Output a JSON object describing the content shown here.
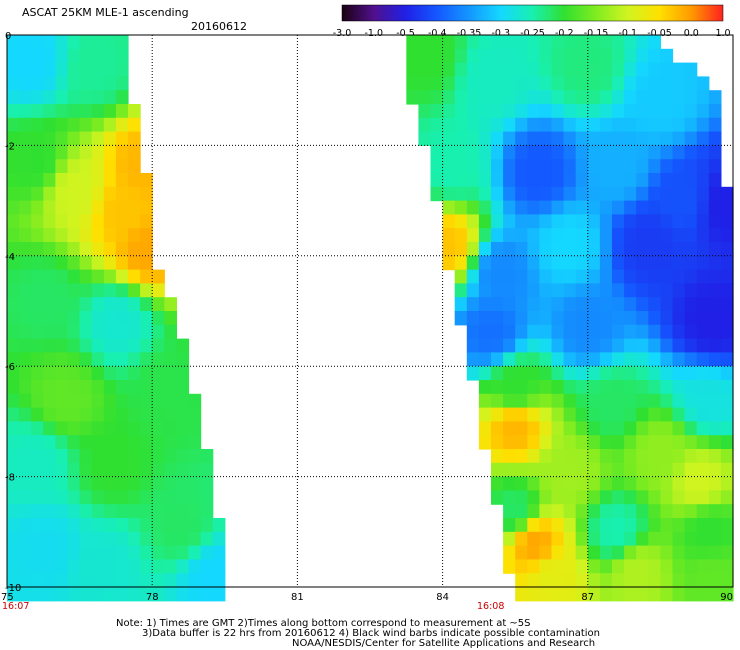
{
  "chart_data": {
    "type": "heatmap",
    "title": "ASCAT 25KM MLE-1 ascending",
    "date": "20160612",
    "xlim": [
      75,
      90
    ],
    "ylim": [
      -10,
      0
    ],
    "x_ticks": [
      "75",
      "78",
      "81",
      "84",
      "87",
      "90"
    ],
    "y_ticks": [
      "0",
      "-2",
      "-4",
      "-6",
      "-8",
      "-10"
    ],
    "grid": true,
    "time_labels": [
      {
        "lon": 75,
        "text": "16:07"
      },
      {
        "lon": 85,
        "text": "16:08"
      }
    ],
    "colorbar": {
      "tick_labels": [
        "-3.0",
        "-1.0",
        "-0.5",
        "-0.4",
        "-0.35",
        "-0.3",
        "-0.25",
        "-0.2",
        "-0.15",
        "-0.1",
        "-0.05",
        "0.0",
        "1.0"
      ],
      "colors": [
        "#1a0010",
        "#50108c",
        "#2020e6",
        "#1458ff",
        "#1496ff",
        "#14d8ff",
        "#18f0b0",
        "#30e030",
        "#80ec20",
        "#d0f420",
        "#ffe000",
        "#ff9a00",
        "#ff2020"
      ]
    },
    "swaths": [
      {
        "name": "west",
        "edges": [
          {
            "lat": 0.0,
            "lon_min": 75.0,
            "lon_max": 77.35
          },
          {
            "lat": -0.5,
            "lon_min": 75.0,
            "lon_max": 77.45
          },
          {
            "lat": -1.0,
            "lon_min": 75.0,
            "lon_max": 77.5
          },
          {
            "lat": -1.5,
            "lon_min": 75.0,
            "lon_max": 77.7
          },
          {
            "lat": -2.0,
            "lon_min": 75.0,
            "lon_max": 77.8
          },
          {
            "lat": -3.0,
            "lon_min": 75.0,
            "lon_max": 77.95
          },
          {
            "lat": -4.0,
            "lon_min": 75.0,
            "lon_max": 78.05
          },
          {
            "lat": -5.0,
            "lon_min": 75.0,
            "lon_max": 78.5
          },
          {
            "lat": -6.0,
            "lon_min": 75.0,
            "lon_max": 78.75
          },
          {
            "lat": -7.0,
            "lon_min": 75.0,
            "lon_max": 79.0
          },
          {
            "lat": -8.0,
            "lon_min": 75.0,
            "lon_max": 79.25
          },
          {
            "lat": -9.0,
            "lon_min": 75.0,
            "lon_max": 79.4
          },
          {
            "lat": -10.0,
            "lon_min": 75.0,
            "lon_max": 79.6
          }
        ],
        "anchors": [
          {
            "lon": 75.5,
            "lat": -0.5,
            "v": -0.3
          },
          {
            "lon": 76.8,
            "lat": -0.6,
            "v": -0.24
          },
          {
            "lon": 75.6,
            "lat": -2.3,
            "v": -0.2
          },
          {
            "lon": 76.4,
            "lat": -2.8,
            "v": -0.1
          },
          {
            "lon": 77.4,
            "lat": -3.2,
            "v": -0.03
          },
          {
            "lon": 77.8,
            "lat": -2.4,
            "v": -0.02
          },
          {
            "lon": 77.9,
            "lat": -3.9,
            "v": -0.01
          },
          {
            "lon": 75.8,
            "lat": -4.8,
            "v": -0.22
          },
          {
            "lon": 77.3,
            "lat": -5.2,
            "v": -0.27
          },
          {
            "lon": 76.2,
            "lat": -6.6,
            "v": -0.17
          },
          {
            "lon": 78.3,
            "lat": -6.4,
            "v": -0.21
          },
          {
            "lon": 75.6,
            "lat": -7.7,
            "v": -0.26
          },
          {
            "lon": 77.2,
            "lat": -7.8,
            "v": -0.2
          },
          {
            "lon": 75.8,
            "lat": -9.3,
            "v": -0.29
          },
          {
            "lon": 77.0,
            "lat": -9.6,
            "v": -0.27
          },
          {
            "lon": 78.6,
            "lat": -8.9,
            "v": -0.22
          },
          {
            "lon": 79.3,
            "lat": -9.8,
            "v": -0.3
          }
        ]
      },
      {
        "name": "east",
        "edges": [
          {
            "lat": 0.0,
            "lon_min": 83.15,
            "lon_max": 88.3
          },
          {
            "lat": -0.5,
            "lon_min": 83.25,
            "lon_max": 89.0
          },
          {
            "lat": -1.0,
            "lon_min": 83.3,
            "lon_max": 89.7
          },
          {
            "lat": -2.0,
            "lon_min": 83.6,
            "lon_max": 89.8
          },
          {
            "lat": -3.0,
            "lon_min": 83.9,
            "lon_max": 89.9
          },
          {
            "lat": -4.0,
            "lon_min": 84.05,
            "lon_max": 89.95
          },
          {
            "lat": -5.0,
            "lon_min": 84.3,
            "lon_max": 90.0
          },
          {
            "lat": -6.0,
            "lon_min": 84.6,
            "lon_max": 90.0
          },
          {
            "lat": -7.0,
            "lon_min": 84.8,
            "lon_max": 90.0
          },
          {
            "lat": -8.0,
            "lon_min": 85.0,
            "lon_max": 90.0
          },
          {
            "lat": -9.0,
            "lon_min": 85.25,
            "lon_max": 90.0
          },
          {
            "lat": -10.0,
            "lon_min": 85.4,
            "lon_max": 90.0
          }
        ],
        "anchors": [
          {
            "lon": 83.7,
            "lat": -0.4,
            "v": -0.2
          },
          {
            "lon": 85.0,
            "lat": -0.8,
            "v": -0.26
          },
          {
            "lon": 87.0,
            "lat": -0.6,
            "v": -0.23
          },
          {
            "lon": 88.5,
            "lat": -1.2,
            "v": -0.31
          },
          {
            "lon": 84.2,
            "lat": -2.4,
            "v": -0.25
          },
          {
            "lon": 86.0,
            "lat": -2.5,
            "v": -0.4
          },
          {
            "lon": 87.6,
            "lat": -2.4,
            "v": -0.33
          },
          {
            "lon": 89.0,
            "lat": -3.0,
            "v": -0.41
          },
          {
            "lon": 89.8,
            "lat": -3.1,
            "v": -0.5
          },
          {
            "lon": 84.1,
            "lat": -3.8,
            "v": -0.03
          },
          {
            "lon": 85.2,
            "lat": -4.3,
            "v": -0.36
          },
          {
            "lon": 86.6,
            "lat": -3.8,
            "v": -0.3
          },
          {
            "lon": 88.3,
            "lat": -3.8,
            "v": -0.45
          },
          {
            "lon": 85.0,
            "lat": -5.4,
            "v": -0.38
          },
          {
            "lon": 87.0,
            "lat": -5.3,
            "v": -0.36
          },
          {
            "lon": 89.6,
            "lat": -5.2,
            "v": -0.5
          },
          {
            "lon": 85.5,
            "lat": -6.4,
            "v": -0.2
          },
          {
            "lon": 87.5,
            "lat": -6.7,
            "v": -0.22
          },
          {
            "lon": 89.5,
            "lat": -6.6,
            "v": -0.28
          },
          {
            "lon": 85.5,
            "lat": -7.1,
            "v": -0.02
          },
          {
            "lon": 86.6,
            "lat": -7.9,
            "v": -0.13
          },
          {
            "lon": 88.5,
            "lat": -7.6,
            "v": -0.14
          },
          {
            "lon": 89.3,
            "lat": -8.1,
            "v": -0.1
          },
          {
            "lon": 85.5,
            "lat": -8.6,
            "v": -0.22
          },
          {
            "lon": 87.6,
            "lat": -9.0,
            "v": -0.25
          },
          {
            "lon": 89.5,
            "lat": -9.0,
            "v": -0.2
          },
          {
            "lon": 85.9,
            "lat": -9.2,
            "v": -0.01
          },
          {
            "lon": 86.3,
            "lat": -9.8,
            "v": -0.08
          },
          {
            "lon": 88.0,
            "lat": -9.7,
            "v": -0.12
          },
          {
            "lon": 89.6,
            "lat": -9.8,
            "v": -0.17
          }
        ]
      }
    ]
  },
  "footer": {
    "note_line1": "Note: 1) Times are GMT 2)Times along bottom correspond to measurement at ~5S",
    "note_line2": "3)Data buffer is 22 hrs from 20160612 4) Black wind barbs indicate possible contamination",
    "credit": "NOAA/NESDIS/Center for Satellite Applications and Research"
  }
}
